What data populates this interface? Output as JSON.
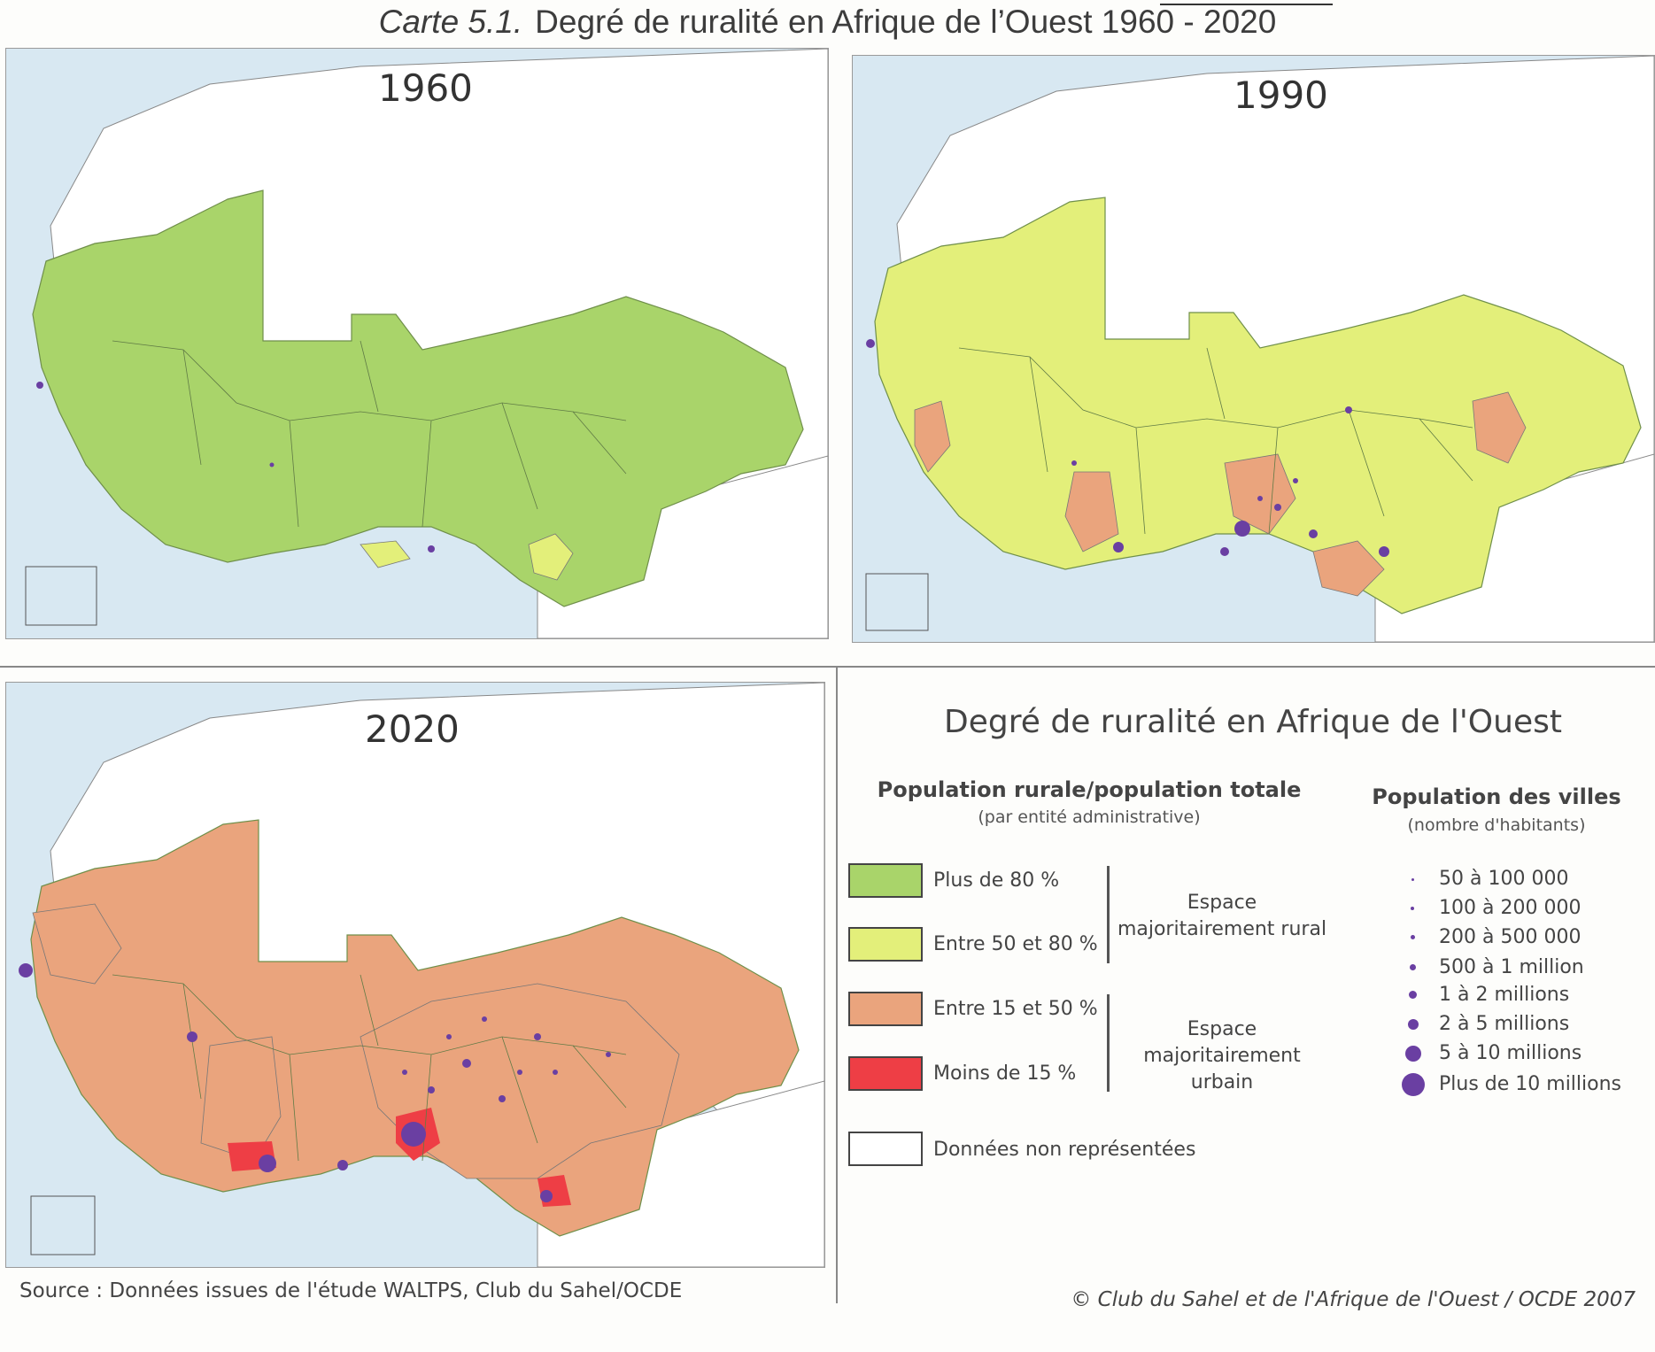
{
  "header": {
    "figure_number": "Carte 5.1.",
    "title": "Degré de ruralité en Afrique de l’Ouest 1960 - 2020"
  },
  "maps": [
    {
      "year": "1960",
      "dominant_class": "Plus de 80 %"
    },
    {
      "year": "1990",
      "dominant_class": "Entre 50 et 80 %"
    },
    {
      "year": "2020",
      "dominant_class": "Entre 15 et 50 %"
    }
  ],
  "legend": {
    "title": "Degré de ruralité en Afrique de l'Ouest",
    "rural_heading": "Population rurale/population totale",
    "rural_subheading": "(par entité administrative)",
    "classes": [
      {
        "label": "Plus de 80 %",
        "color": "#a9d46a"
      },
      {
        "label": "Entre 50 et 80 %",
        "color": "#e3ef7a"
      },
      {
        "label": "Entre 15 et 50 %",
        "color": "#eaa47d"
      },
      {
        "label": "Moins de 15 %",
        "color": "#ee3e45"
      },
      {
        "label": "Données non représentées",
        "color": "#ffffff"
      }
    ],
    "rural_space": "Espace majoritairement rural",
    "urban_space": "Espace majoritairement urbain",
    "cities_heading": "Population des villes",
    "cities_subheading": "(nombre d'habitants)",
    "city_sizes": [
      "50 à 100 000",
      "100 à 200 000",
      "200 à 500 000",
      "500 à 1 million",
      "1 à 2 millions",
      "2 à 5 millions",
      "5 à 10 millions",
      "Plus de 10 millions"
    ],
    "city_color": "#6a3fa2",
    "sea_color": "#d8e8f2"
  },
  "footer": {
    "source": "Source : Données issues de l'étude WALTPS, Club du Sahel/OCDE",
    "copyright": "© Club du Sahel et de l'Afrique de l'Ouest / OCDE 2007"
  }
}
